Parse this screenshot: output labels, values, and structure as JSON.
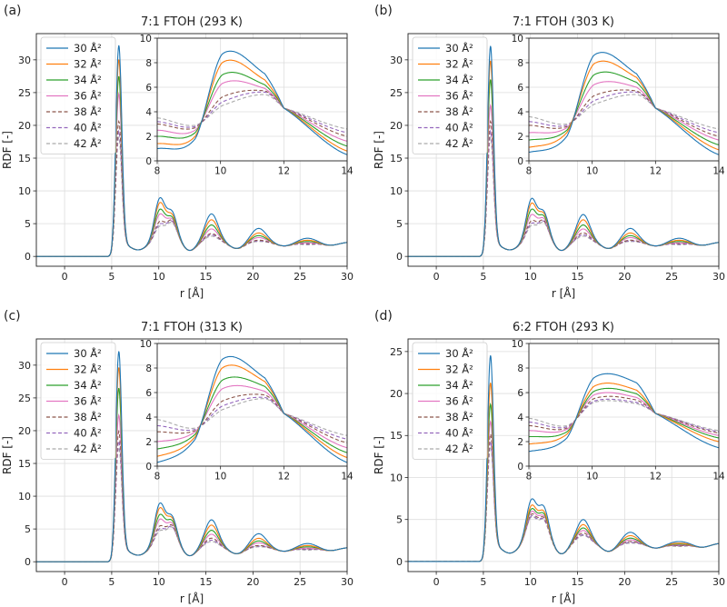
{
  "figure": {
    "xlabel": "r [Å]",
    "ylabel": "RDF [-]",
    "legend_position": "upper-left"
  },
  "series_styles": [
    {
      "name": "30 Å²",
      "color": "#1f77b4",
      "dash": "solid"
    },
    {
      "name": "32 Å²",
      "color": "#ff7f0e",
      "dash": "solid"
    },
    {
      "name": "34 Å²",
      "color": "#2ca02c",
      "dash": "solid"
    },
    {
      "name": "36 Å²",
      "color": "#e377c2",
      "dash": "solid"
    },
    {
      "name": "38 Å²",
      "color": "#8c564b",
      "dash": "dashed"
    },
    {
      "name": "40 Å²",
      "color": "#9467bd",
      "dash": "dashed"
    },
    {
      "name": "42 Å²",
      "color": "#aaaaaa",
      "dash": "dashed"
    }
  ],
  "chart_data": [
    {
      "panel_label": "(a)",
      "type": "line",
      "title": "7:1 FTOH (293 K)",
      "xlabel": "r [Å]",
      "ylabel": "RDF [-]",
      "xlim": [
        -3,
        30
      ],
      "ylim": [
        -1.5,
        34
      ],
      "xticks": [
        0,
        5,
        10,
        15,
        20,
        25,
        30
      ],
      "yticks": [
        0,
        5,
        10,
        15,
        20,
        25,
        30
      ],
      "series_names": [
        "30 Å²",
        "32 Å²",
        "34 Å²",
        "36 Å²",
        "38 Å²",
        "40 Å²",
        "42 Å²"
      ],
      "first_peak": [
        32.8,
        30.6,
        28.0,
        25.3,
        21.0,
        19.5,
        18.5
      ],
      "peak_10": [
        8.7,
        8.0,
        7.0,
        6.3,
        5.2,
        4.8,
        4.5
      ],
      "peak_11": [
        7.1,
        6.6,
        6.2,
        5.9,
        5.7,
        5.6,
        5.4
      ],
      "peak_15": [
        6.5,
        5.6,
        4.8,
        4.2,
        3.5,
        3.3,
        3.1
      ],
      "peak_20": [
        4.3,
        3.6,
        3.2,
        2.9,
        2.5,
        2.4,
        2.3
      ],
      "peak_25": [
        2.8,
        2.5,
        2.3,
        2.1,
        2.0,
        1.9,
        1.8
      ],
      "inset": {
        "xlim": [
          8,
          14
        ],
        "ylim": [
          0,
          10
        ],
        "xticks": [
          8,
          10,
          12,
          14
        ],
        "yticks": [
          0,
          2,
          4,
          6,
          8,
          10
        ],
        "start": [
          1.0,
          1.4,
          2.0,
          2.5,
          3.0,
          3.2,
          3.5
        ],
        "valley_9": [
          1.8,
          2.0,
          2.3,
          2.5,
          2.7,
          2.8,
          2.9
        ],
        "peak_10": [
          8.7,
          8.0,
          7.0,
          6.3,
          5.2,
          4.8,
          4.5
        ],
        "peak_11_4": [
          7.1,
          6.6,
          6.2,
          5.9,
          5.7,
          5.6,
          5.4
        ],
        "end": [
          0.5,
          0.8,
          1.2,
          1.6,
          2.0,
          2.3,
          2.6
        ]
      }
    },
    {
      "panel_label": "(b)",
      "type": "line",
      "title": "7:1 FTOH (303 K)",
      "xlabel": "r [Å]",
      "ylabel": "RDF [-]",
      "xlim": [
        -3,
        30
      ],
      "ylim": [
        -1.5,
        34
      ],
      "xticks": [
        0,
        5,
        10,
        15,
        20,
        25,
        30
      ],
      "yticks": [
        0,
        5,
        10,
        15,
        20,
        25,
        30
      ],
      "series_names": [
        "30 Å²",
        "32 Å²",
        "34 Å²",
        "36 Å²",
        "38 Å²",
        "40 Å²",
        "42 Å²"
      ],
      "first_peak": [
        32.7,
        30.4,
        27.5,
        23.5,
        21.0,
        19.5,
        18.5
      ],
      "peak_10": [
        8.6,
        7.9,
        7.0,
        6.2,
        5.3,
        4.9,
        4.6
      ],
      "peak_11": [
        7.1,
        6.8,
        6.4,
        6.0,
        5.7,
        5.6,
        5.4
      ],
      "peak_15": [
        6.4,
        5.6,
        4.8,
        4.2,
        3.6,
        3.3,
        3.1
      ],
      "peak_20": [
        4.3,
        3.6,
        3.2,
        2.9,
        2.5,
        2.4,
        2.3
      ],
      "peak_25": [
        2.8,
        2.5,
        2.3,
        2.1,
        2.0,
        1.9,
        1.8
      ],
      "inset": {
        "xlim": [
          8,
          14
        ],
        "ylim": [
          0,
          10
        ],
        "xticks": [
          8,
          10,
          12,
          14
        ],
        "yticks": [
          0,
          2,
          4,
          6,
          8,
          10
        ],
        "start": [
          0.7,
          1.1,
          1.7,
          2.3,
          2.9,
          3.2,
          3.6
        ],
        "valley_9": [
          2.0,
          2.3,
          2.5,
          2.7,
          2.8,
          2.9,
          3.0
        ],
        "peak_10": [
          8.6,
          7.9,
          7.0,
          6.2,
          5.3,
          4.9,
          4.6
        ],
        "peak_11_4": [
          7.1,
          6.8,
          6.4,
          6.0,
          5.7,
          5.6,
          5.4
        ],
        "end": [
          0.5,
          0.9,
          1.3,
          1.7,
          2.0,
          2.3,
          2.6
        ]
      }
    },
    {
      "panel_label": "(c)",
      "type": "line",
      "title": "7:1 FTOH (313 K)",
      "xlabel": "r [Å]",
      "ylabel": "RDF [-]",
      "xlim": [
        -3,
        30
      ],
      "ylim": [
        -1.5,
        34
      ],
      "xticks": [
        0,
        5,
        10,
        15,
        20,
        25,
        30
      ],
      "yticks": [
        0,
        5,
        10,
        15,
        20,
        25,
        30
      ],
      "series_names": [
        "30 Å²",
        "32 Å²",
        "34 Å²",
        "36 Å²",
        "38 Å²",
        "40 Å²",
        "42 Å²"
      ],
      "first_peak": [
        32.7,
        30.2,
        27.0,
        22.8,
        20.3,
        18.8,
        17.8
      ],
      "peak_10": [
        8.7,
        8.0,
        7.0,
        6.3,
        5.3,
        4.9,
        4.6
      ],
      "peak_11": [
        7.2,
        6.9,
        6.5,
        6.1,
        5.8,
        5.6,
        5.5
      ],
      "peak_15": [
        6.4,
        5.6,
        4.8,
        4.2,
        3.6,
        3.3,
        3.1
      ],
      "peak_20": [
        4.3,
        3.6,
        3.2,
        2.9,
        2.5,
        2.4,
        2.3
      ],
      "peak_25": [
        2.8,
        2.5,
        2.3,
        2.1,
        2.0,
        1.9,
        1.8
      ],
      "inset": {
        "xlim": [
          8,
          14
        ],
        "ylim": [
          0,
          10
        ],
        "xticks": [
          8,
          10,
          12,
          14
        ],
        "yticks": [
          0,
          2,
          4,
          6,
          8,
          10
        ],
        "start": [
          0.3,
          0.8,
          1.4,
          2.0,
          2.8,
          3.3,
          3.8
        ],
        "valley_9": [
          2.2,
          2.4,
          2.6,
          2.8,
          2.9,
          3.0,
          3.1
        ],
        "peak_10": [
          8.7,
          8.0,
          7.0,
          6.3,
          5.3,
          4.9,
          4.6
        ],
        "peak_11_4": [
          7.2,
          6.9,
          6.5,
          6.1,
          5.8,
          5.6,
          5.5
        ],
        "end": [
          0.3,
          0.7,
          1.1,
          1.5,
          1.9,
          2.2,
          2.5
        ]
      }
    },
    {
      "panel_label": "(d)",
      "type": "line",
      "title": "6:2 FTOH (293 K)",
      "xlabel": "r [Å]",
      "ylabel": "RDF [-]",
      "xlim": [
        -3,
        30
      ],
      "ylim": [
        -1.2,
        26.5
      ],
      "xticks": [
        0,
        5,
        10,
        15,
        20,
        25,
        30
      ],
      "yticks": [
        0,
        5,
        10,
        15,
        20,
        25
      ],
      "series_names": [
        "30 Å²",
        "32 Å²",
        "34 Å²",
        "36 Å²",
        "38 Å²",
        "40 Å²",
        "42 Å²"
      ],
      "first_peak": [
        25.0,
        21.7,
        19.1,
        17.0,
        15.5,
        14.6,
        14.0
      ],
      "peak_10": [
        7.2,
        6.5,
        6.1,
        5.8,
        5.5,
        5.3,
        5.2
      ],
      "peak_11": [
        6.8,
        6.2,
        5.9,
        5.6,
        5.4,
        5.2,
        5.1
      ],
      "peak_15": [
        5.0,
        4.4,
        4.0,
        3.7,
        3.4,
        3.2,
        3.1
      ],
      "peak_20": [
        3.5,
        3.1,
        2.8,
        2.6,
        2.4,
        2.3,
        2.2
      ],
      "peak_25": [
        2.4,
        2.2,
        2.1,
        2.0,
        1.9,
        1.9,
        1.8
      ],
      "inset": {
        "xlim": [
          8,
          14
        ],
        "ylim": [
          0,
          10
        ],
        "xticks": [
          8,
          10,
          12,
          14
        ],
        "yticks": [
          0,
          2,
          4,
          6,
          8,
          10
        ],
        "start": [
          1.2,
          1.8,
          2.4,
          2.9,
          3.3,
          3.6,
          3.9
        ],
        "valley_9": [
          2.3,
          2.6,
          2.8,
          3.0,
          3.1,
          3.2,
          3.3
        ],
        "peak_10": [
          7.2,
          6.5,
          6.1,
          5.8,
          5.5,
          5.3,
          5.2
        ],
        "peak_11_4": [
          6.8,
          6.2,
          5.9,
          5.6,
          5.4,
          5.2,
          5.1
        ],
        "end": [
          1.5,
          2.0,
          2.3,
          2.5,
          2.7,
          2.8,
          2.9
        ]
      }
    }
  ]
}
